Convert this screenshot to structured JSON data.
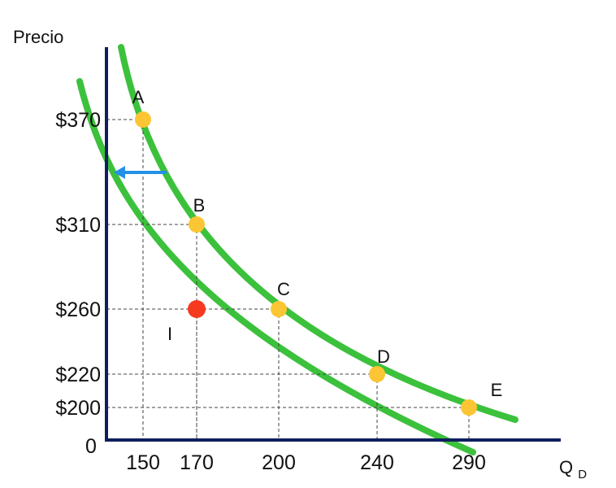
{
  "chart_data": {
    "type": "line",
    "title": "",
    "ylabel": "Precio",
    "xlabel": {
      "main": "Q",
      "sub": "D"
    },
    "origin_label": "0",
    "x_ticks": [
      {
        "value": 150,
        "label": "150"
      },
      {
        "value": 170,
        "label": "170"
      },
      {
        "value": 200,
        "label": "200"
      },
      {
        "value": 240,
        "label": "240"
      },
      {
        "value": 290,
        "label": "290"
      }
    ],
    "y_ticks": [
      {
        "value": 200,
        "label": "$200"
      },
      {
        "value": 220,
        "label": "$220"
      },
      {
        "value": 260,
        "label": "$260"
      },
      {
        "value": 310,
        "label": "$310"
      },
      {
        "value": 370,
        "label": "$370"
      }
    ],
    "series": [
      {
        "curve": "original-demand",
        "values": [
          {
            "x": 150,
            "y": 370,
            "label": "A"
          },
          {
            "x": 170,
            "y": 310,
            "label": "B"
          },
          {
            "x": 200,
            "y": 260,
            "label": "C"
          },
          {
            "x": 240,
            "y": 220,
            "label": "D"
          },
          {
            "x": 290,
            "y": 200,
            "label": "E"
          }
        ]
      },
      {
        "curve": "shifted-demand",
        "values": [
          {
            "x": 170,
            "y": 260,
            "label": "I"
          }
        ]
      }
    ],
    "shift_arrow": "left",
    "colors": {
      "curve": "#3cc13c",
      "point": "#fcc533",
      "highlight_point": "#f53a1f",
      "arrow": "#2590e8",
      "axis": "#0f1f5e",
      "guide": "#444444"
    }
  }
}
